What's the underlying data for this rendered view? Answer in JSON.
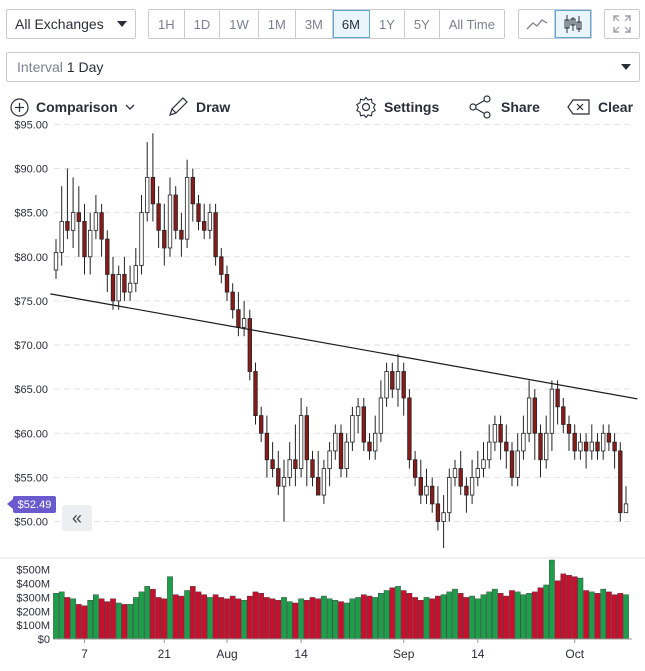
{
  "exchange_select": {
    "value": "All Exchanges"
  },
  "ranges": [
    "1H",
    "1D",
    "1W",
    "1M",
    "3M",
    "6M",
    "1Y",
    "5Y",
    "All Time"
  ],
  "active_range": "6M",
  "chart_types": [
    "line-chart-icon",
    "candlestick-icon"
  ],
  "active_chart_type": "candlestick-icon",
  "interval": {
    "label": "Interval",
    "value": "1 Day"
  },
  "toolbar": {
    "comparison": "Comparison",
    "draw": "Draw",
    "settings": "Settings",
    "share": "Share",
    "clear": "Clear"
  },
  "current_price_label": "$52.49",
  "colors": {
    "up": "#1e9e4a",
    "down": "#c8102e",
    "accent": "#6a5acd",
    "trendline": "#1a1a1a"
  },
  "chart_data": {
    "type": "candlestick",
    "price_ticks": [
      "$95.00",
      "$90.00",
      "$85.00",
      "$80.00",
      "$75.00",
      "$70.00",
      "$65.00",
      "$60.00",
      "$55.00",
      "$50.00"
    ],
    "price_tick_values": [
      95,
      90,
      85,
      80,
      75,
      70,
      65,
      60,
      55,
      50
    ],
    "ylim": [
      47,
      95.5
    ],
    "volume_ticks": [
      "$500M",
      "$400M",
      "$300M",
      "$200M",
      "$100M",
      "$0"
    ],
    "volume_tick_values": [
      500,
      400,
      300,
      200,
      100,
      0
    ],
    "volume_ylim": [
      0,
      570
    ],
    "x_ticks": [
      {
        "label": "7",
        "index": 5
      },
      {
        "label": "21",
        "index": 19
      },
      {
        "label": "Aug",
        "index": 30
      },
      {
        "label": "14",
        "index": 43
      },
      {
        "label": "Sep",
        "index": 61
      },
      {
        "label": "14",
        "index": 74
      },
      {
        "label": "Oct",
        "index": 91
      }
    ],
    "trendline": {
      "start": [
        -1,
        75.8
      ],
      "end": [
        102,
        63.9
      ]
    },
    "candles": [
      [
        78.5,
        80.5,
        82,
        77.5
      ],
      [
        80.5,
        84,
        88,
        79
      ],
      [
        84,
        83,
        90,
        82
      ],
      [
        83,
        85,
        89,
        81
      ],
      [
        85,
        84,
        88,
        80
      ],
      [
        84,
        80,
        86,
        78
      ],
      [
        80,
        83,
        85,
        78
      ],
      [
        83,
        85,
        87,
        82
      ],
      [
        85,
        82,
        86,
        80
      ],
      [
        82,
        78,
        83,
        76
      ],
      [
        78,
        75,
        80,
        74
      ],
      [
        75,
        78,
        79,
        74
      ],
      [
        78,
        76,
        80,
        75
      ],
      [
        76,
        77,
        79,
        75
      ],
      [
        77,
        79,
        81,
        76
      ],
      [
        79,
        85,
        87,
        78
      ],
      [
        85,
        89,
        93,
        84
      ],
      [
        89,
        86,
        94,
        84
      ],
      [
        86,
        83,
        88,
        81
      ],
      [
        83,
        81,
        86,
        79
      ],
      [
        81,
        87,
        89,
        80
      ],
      [
        87,
        83,
        88,
        82
      ],
      [
        83,
        82,
        85,
        80
      ],
      [
        82,
        89,
        91,
        81
      ],
      [
        89,
        86,
        90,
        84
      ],
      [
        86,
        84,
        87,
        83
      ],
      [
        84,
        83,
        86,
        82
      ],
      [
        83,
        85,
        86,
        82
      ],
      [
        85,
        80,
        86,
        79
      ],
      [
        80,
        78,
        81,
        77
      ],
      [
        78,
        76,
        79,
        75
      ],
      [
        76,
        74,
        77,
        73
      ],
      [
        74,
        72,
        76,
        71
      ],
      [
        72,
        73,
        75,
        71
      ],
      [
        73,
        67,
        74,
        66
      ],
      [
        67,
        62,
        68,
        61
      ],
      [
        62,
        60,
        63,
        59
      ],
      [
        60,
        57,
        62,
        55
      ],
      [
        57,
        56,
        59,
        55
      ],
      [
        56,
        54,
        58,
        53
      ],
      [
        54,
        55,
        57,
        50
      ],
      [
        55,
        57,
        59,
        54
      ],
      [
        57,
        56,
        61,
        54
      ],
      [
        56,
        62,
        64,
        55
      ],
      [
        62,
        57,
        63,
        54
      ],
      [
        57,
        55,
        58,
        54
      ],
      [
        55,
        53,
        58,
        53
      ],
      [
        53,
        56,
        57,
        52
      ],
      [
        56,
        58,
        59,
        54
      ],
      [
        58,
        60,
        61,
        57
      ],
      [
        60,
        56,
        61,
        55
      ],
      [
        56,
        59,
        60,
        55
      ],
      [
        59,
        62,
        63,
        58
      ],
      [
        62,
        63,
        64,
        60
      ],
      [
        63,
        59,
        64,
        58
      ],
      [
        59,
        58,
        60,
        57
      ],
      [
        58,
        60,
        62,
        57
      ],
      [
        60,
        64,
        66,
        59
      ],
      [
        64,
        67,
        68,
        63
      ],
      [
        67,
        65,
        68,
        64
      ],
      [
        65,
        67,
        69,
        63
      ],
      [
        67,
        64,
        68,
        62
      ],
      [
        64,
        57,
        65,
        56
      ],
      [
        57,
        55,
        58,
        54
      ],
      [
        55,
        53,
        57,
        52
      ],
      [
        53,
        54,
        56,
        52
      ],
      [
        54,
        52,
        55,
        51
      ],
      [
        52,
        50,
        54,
        49
      ],
      [
        50,
        51,
        53,
        47
      ],
      [
        51,
        55,
        56,
        50
      ],
      [
        55,
        56,
        57,
        54
      ],
      [
        56,
        54,
        58,
        53
      ],
      [
        54,
        53,
        55,
        51
      ],
      [
        53,
        55,
        57,
        52
      ],
      [
        55,
        56,
        58,
        54
      ],
      [
        56,
        57,
        59,
        55
      ],
      [
        57,
        59,
        61,
        56
      ],
      [
        59,
        61,
        62,
        58
      ],
      [
        61,
        59,
        62,
        57
      ],
      [
        59,
        58,
        61,
        56
      ],
      [
        58,
        55,
        59,
        54
      ],
      [
        55,
        58,
        60,
        54
      ],
      [
        58,
        60,
        62,
        57
      ],
      [
        60,
        64,
        66,
        59
      ],
      [
        64,
        60,
        65,
        57
      ],
      [
        60,
        57,
        61,
        55
      ],
      [
        57,
        60,
        62,
        56
      ],
      [
        60,
        65,
        66,
        58
      ],
      [
        65,
        63,
        66,
        61
      ],
      [
        63,
        61,
        64,
        60
      ],
      [
        61,
        60,
        62,
        58
      ],
      [
        60,
        58,
        61,
        57
      ],
      [
        58,
        59,
        60,
        57
      ],
      [
        59,
        58,
        60,
        56
      ],
      [
        58,
        59,
        61,
        57
      ],
      [
        59,
        58,
        60,
        57
      ],
      [
        58,
        60,
        61,
        57
      ],
      [
        60,
        59,
        61,
        58
      ],
      [
        59,
        58,
        60,
        56
      ],
      [
        58,
        51,
        59,
        50
      ],
      [
        51,
        52,
        54,
        51
      ]
    ],
    "volumes": [
      330,
      340,
      300,
      290,
      250,
      240,
      280,
      320,
      290,
      270,
      290,
      260,
      250,
      250,
      300,
      340,
      380,
      360,
      300,
      290,
      450,
      320,
      310,
      350,
      380,
      340,
      320,
      300,
      320,
      300,
      290,
      310,
      290,
      280,
      310,
      340,
      330,
      300,
      290,
      280,
      300,
      270,
      260,
      290,
      280,
      300,
      290,
      310,
      290,
      280,
      270,
      260,
      290,
      300,
      320,
      310,
      300,
      330,
      350,
      370,
      380,
      350,
      330,
      300,
      280,
      300,
      290,
      310,
      320,
      340,
      360,
      330,
      300,
      310,
      290,
      320,
      340,
      360,
      330,
      310,
      350,
      340,
      320,
      330,
      340,
      370,
      390,
      420,
      400,
      380,
      360,
      350,
      370,
      350,
      340,
      330,
      360,
      340,
      320,
      330,
      320
    ],
    "volume_overrides": {
      "87": 570,
      "88": 420,
      "89": 470,
      "90": 460,
      "91": 450,
      "92": 440
    }
  }
}
